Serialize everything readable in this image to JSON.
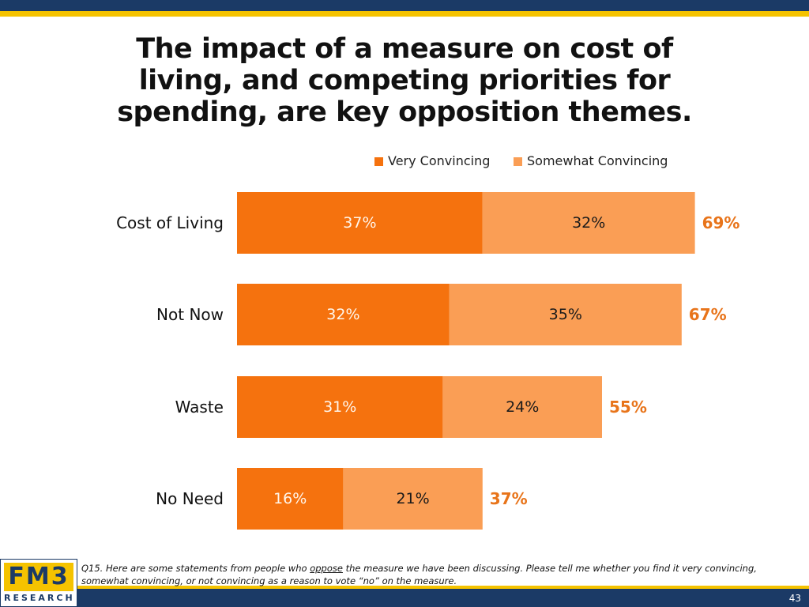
{
  "title_lines": [
    "The impact of a measure on cost of",
    "living, and competing priorities for",
    "spending, are key opposition themes."
  ],
  "colors": {
    "very": "#f5720e",
    "somewhat": "#fa9e55",
    "total_label": "#e8741a",
    "navy": "#1b3a66",
    "gold": "#f5c300"
  },
  "chart_data": {
    "type": "bar",
    "orientation": "horizontal",
    "stacked": true,
    "categories": [
      "Cost of Living",
      "Not Now",
      "Waste",
      "No Need"
    ],
    "series": [
      {
        "name": "Very Convincing",
        "values": [
          37,
          32,
          31,
          16
        ]
      },
      {
        "name": "Somewhat Convincing",
        "values": [
          32,
          35,
          24,
          21
        ]
      }
    ],
    "totals": [
      69,
      67,
      55,
      37
    ],
    "value_suffix": "%",
    "xlim": [
      0,
      70
    ],
    "legend_position": "top-right",
    "grid": false
  },
  "footnote": {
    "prefix": "Q15. Here are some statements from people who ",
    "underlined": "oppose",
    "suffix": " the measure we have been discussing. Please tell me whether you find it very convincing, somewhat convincing, or not convincing as a reason to vote “no” on the measure."
  },
  "logo": {
    "top": "FM3",
    "bottom": "RESEARCH"
  },
  "page_number": "43"
}
